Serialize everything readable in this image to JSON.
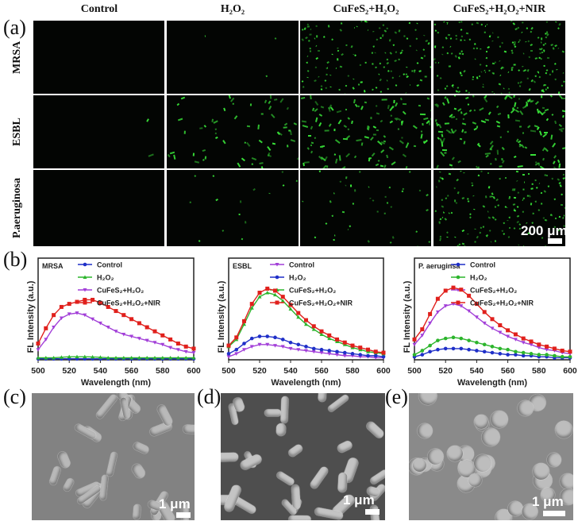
{
  "panel_labels": {
    "a": "(a)",
    "b": "(b)",
    "c": "(c)",
    "d": "(d)",
    "e": "(e)"
  },
  "fluorescence": {
    "columns": [
      "Control",
      "H₂O₂",
      "CuFeS₂+H₂O₂",
      "CuFeS₂+H₂O₂+NIR"
    ],
    "rows": [
      "MRSA",
      "ESBL",
      "P.aeruginosa"
    ],
    "scale_bar": "200 μm",
    "cell_color": "#39e639"
  },
  "sem": {
    "scale_bar": "1 μm"
  },
  "chart_data": [
    {
      "type": "line",
      "title": "MRSA",
      "xlabel": "Wavelength (nm)",
      "ylabel": "FL Intensity (a.u.)",
      "xlim": [
        500,
        600
      ],
      "xticks": [
        500,
        520,
        540,
        560,
        580,
        600
      ],
      "ylim": [
        0,
        1
      ],
      "legend": "top-right",
      "x": [
        500,
        505,
        510,
        515,
        520,
        525,
        530,
        535,
        540,
        545,
        550,
        555,
        560,
        565,
        570,
        575,
        580,
        585,
        590,
        595,
        600
      ],
      "series": [
        {
          "name": "Control",
          "color": "#1f2fc8",
          "marker": "circle",
          "values": [
            0.01,
            0.01,
            0.01,
            0.01,
            0.01,
            0.01,
            0.01,
            0.01,
            0.01,
            0.01,
            0.01,
            0.01,
            0.01,
            0.01,
            0.01,
            0.01,
            0.01,
            0.01,
            0.01,
            0.01,
            0.01
          ]
        },
        {
          "name": "H₂O₂",
          "color": "#2cb52c",
          "marker": "triangle",
          "values": [
            0.02,
            0.02,
            0.02,
            0.025,
            0.03,
            0.03,
            0.03,
            0.028,
            0.025,
            0.02,
            0.02,
            0.02,
            0.02,
            0.02,
            0.02,
            0.02,
            0.02,
            0.02,
            0.02,
            0.02,
            0.02
          ]
        },
        {
          "name": "CuFeS₂+H₂O₂",
          "color": "#a23fd8",
          "marker": "triangle-down",
          "values": [
            0.1,
            0.2,
            0.32,
            0.41,
            0.45,
            0.46,
            0.44,
            0.4,
            0.36,
            0.32,
            0.28,
            0.25,
            0.23,
            0.21,
            0.19,
            0.17,
            0.15,
            0.12,
            0.1,
            0.08,
            0.07
          ]
        },
        {
          "name": "CuFeS₂+H₂O₂+NIR",
          "color": "#e0201c",
          "marker": "square",
          "values": [
            0.16,
            0.31,
            0.44,
            0.52,
            0.55,
            0.57,
            0.59,
            0.59,
            0.56,
            0.52,
            0.48,
            0.44,
            0.4,
            0.36,
            0.32,
            0.28,
            0.24,
            0.2,
            0.16,
            0.13,
            0.11
          ]
        }
      ]
    },
    {
      "type": "line",
      "title": "ESBL",
      "xlabel": "Wavelength (nm)",
      "ylabel": "FL Intensity (a.u.)",
      "xlim": [
        500,
        600
      ],
      "xticks": [
        500,
        520,
        540,
        560,
        580,
        600
      ],
      "ylim": [
        0,
        1
      ],
      "legend": "top-right",
      "x": [
        500,
        505,
        510,
        515,
        520,
        525,
        530,
        535,
        540,
        545,
        550,
        555,
        560,
        565,
        570,
        575,
        580,
        585,
        590,
        595,
        600
      ],
      "series": [
        {
          "name": "Control",
          "color": "#a23fd8",
          "marker": "triangle-down",
          "values": [
            0.03,
            0.06,
            0.1,
            0.13,
            0.15,
            0.15,
            0.14,
            0.13,
            0.11,
            0.1,
            0.09,
            0.08,
            0.07,
            0.06,
            0.05,
            0.04,
            0.04,
            0.03,
            0.03,
            0.02,
            0.02
          ]
        },
        {
          "name": "H₂O₂",
          "color": "#1f2fc8",
          "marker": "circle",
          "values": [
            0.06,
            0.1,
            0.16,
            0.21,
            0.23,
            0.23,
            0.22,
            0.2,
            0.17,
            0.15,
            0.13,
            0.11,
            0.1,
            0.09,
            0.08,
            0.07,
            0.06,
            0.05,
            0.04,
            0.04,
            0.03
          ]
        },
        {
          "name": "CuFeS₂+H₂O₂",
          "color": "#2cb52c",
          "marker": "triangle",
          "values": [
            0.13,
            0.2,
            0.35,
            0.51,
            0.62,
            0.66,
            0.64,
            0.58,
            0.5,
            0.42,
            0.35,
            0.3,
            0.25,
            0.21,
            0.18,
            0.15,
            0.12,
            0.1,
            0.08,
            0.07,
            0.06
          ]
        },
        {
          "name": "CuFeS₂+H₂O₂+NIR",
          "color": "#e0201c",
          "marker": "square",
          "values": [
            0.14,
            0.22,
            0.38,
            0.55,
            0.66,
            0.7,
            0.68,
            0.62,
            0.54,
            0.46,
            0.39,
            0.33,
            0.28,
            0.24,
            0.2,
            0.17,
            0.14,
            0.12,
            0.1,
            0.08,
            0.07
          ]
        }
      ]
    },
    {
      "type": "line",
      "title": "P. aeruginsa",
      "xlabel": "Wavelength (nm)",
      "ylabel": "FL Intensity (a.u.)",
      "xlim": [
        500,
        600
      ],
      "xticks": [
        500,
        520,
        540,
        560,
        580,
        600
      ],
      "ylim": [
        0,
        1
      ],
      "legend": "top-right",
      "x": [
        500,
        505,
        510,
        515,
        520,
        525,
        530,
        535,
        540,
        545,
        550,
        555,
        560,
        565,
        570,
        575,
        580,
        585,
        590,
        595,
        600
      ],
      "series": [
        {
          "name": "Control",
          "color": "#1f2fc8",
          "marker": "circle",
          "values": [
            0.03,
            0.05,
            0.08,
            0.1,
            0.11,
            0.11,
            0.11,
            0.1,
            0.09,
            0.08,
            0.07,
            0.06,
            0.05,
            0.05,
            0.04,
            0.04,
            0.03,
            0.03,
            0.02,
            0.02,
            0.02
          ]
        },
        {
          "name": "H₂O₂",
          "color": "#2cb52c",
          "marker": "circle",
          "values": [
            0.05,
            0.09,
            0.14,
            0.19,
            0.21,
            0.22,
            0.21,
            0.19,
            0.17,
            0.15,
            0.13,
            0.11,
            0.1,
            0.08,
            0.07,
            0.06,
            0.05,
            0.05,
            0.04,
            0.03,
            0.03
          ]
        },
        {
          "name": "CuFeS₂+H₂O₂",
          "color": "#a23fd8",
          "marker": "triangle-down",
          "values": [
            0.15,
            0.24,
            0.36,
            0.47,
            0.53,
            0.55,
            0.53,
            0.48,
            0.42,
            0.36,
            0.31,
            0.27,
            0.23,
            0.2,
            0.17,
            0.15,
            0.12,
            0.1,
            0.09,
            0.07,
            0.06
          ]
        },
        {
          "name": "CuFeS₂+H₂O₂+NIR",
          "color": "#e0201c",
          "marker": "square",
          "values": [
            0.2,
            0.3,
            0.45,
            0.6,
            0.68,
            0.71,
            0.69,
            0.63,
            0.55,
            0.47,
            0.4,
            0.34,
            0.29,
            0.25,
            0.21,
            0.18,
            0.15,
            0.13,
            0.11,
            0.09,
            0.08
          ]
        }
      ]
    }
  ]
}
